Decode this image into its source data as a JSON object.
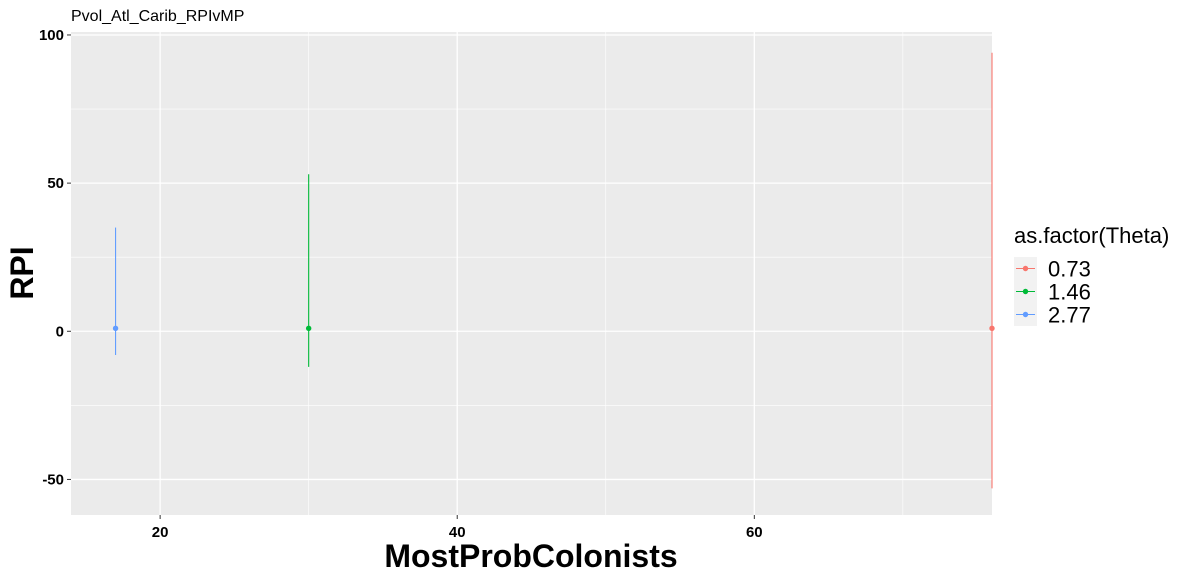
{
  "chart_data": {
    "type": "scatter",
    "title": "Pvol_Atl_Carib_RPIvMP",
    "xlabel": "MostProbColonists",
    "ylabel": "RPI",
    "xlim": [
      14,
      76
    ],
    "ylim": [
      -62,
      101
    ],
    "x_ticks": [
      20,
      40,
      60
    ],
    "x_tick_labels": [
      "20",
      "40",
      "60"
    ],
    "y_ticks": [
      -50,
      0,
      50,
      100
    ],
    "y_tick_labels": [
      "-50",
      "0",
      "50",
      "100"
    ],
    "grid": true,
    "legend": {
      "title": "as.factor(Theta)",
      "position": "right"
    },
    "series": [
      {
        "name": "0.73",
        "color": "#F8766D",
        "points": [
          {
            "x": 76,
            "y": 1,
            "ymin": -53,
            "ymax": 94
          }
        ]
      },
      {
        "name": "1.46",
        "color": "#00BA38",
        "points": [
          {
            "x": 30,
            "y": 1,
            "ymin": -12,
            "ymax": 53
          }
        ]
      },
      {
        "name": "2.77",
        "color": "#619CFF",
        "points": [
          {
            "x": 17,
            "y": 1,
            "ymin": -8,
            "ymax": 35
          }
        ]
      }
    ]
  }
}
